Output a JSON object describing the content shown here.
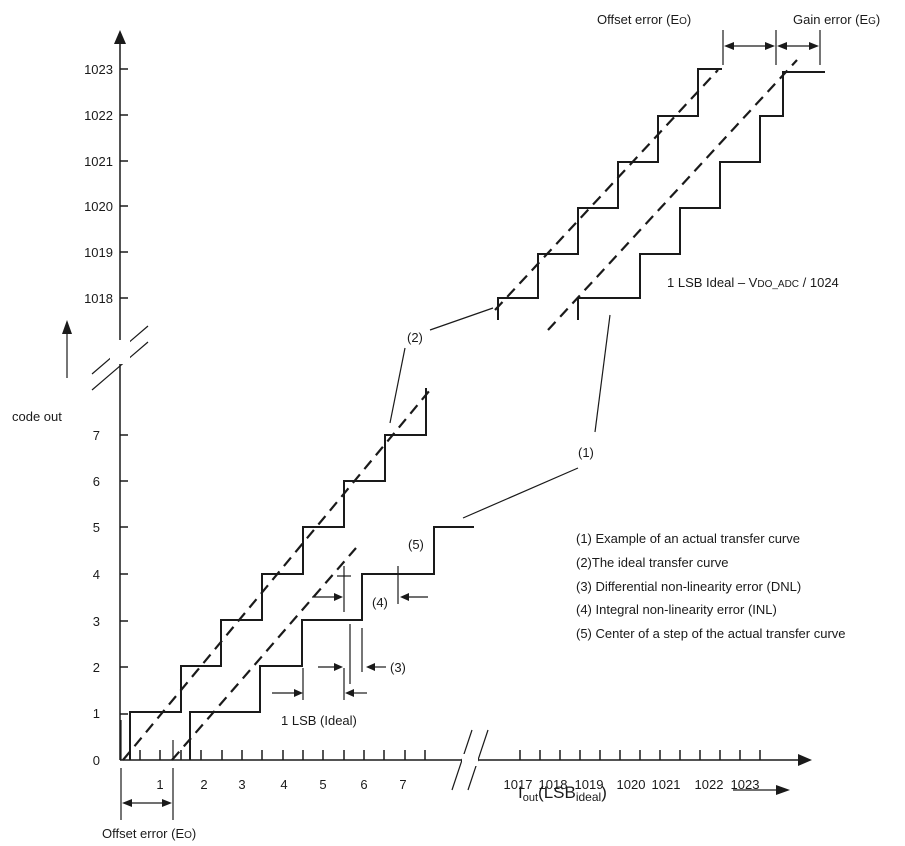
{
  "y_axis": {
    "label": "code out",
    "lower_ticks": [
      "0",
      "1",
      "2",
      "3",
      "4",
      "5",
      "6",
      "7"
    ],
    "upper_ticks": [
      "1018",
      "1019",
      "1020",
      "1021",
      "1022",
      "1023"
    ]
  },
  "x_axis": {
    "label_main": "I",
    "label_sub1": "out",
    "label_mid": "(LSB",
    "label_sub2": "ideal",
    "label_end": ")",
    "lower_ticks": [
      "1",
      "2",
      "3",
      "4",
      "5",
      "6",
      "7"
    ],
    "upper_ticks": [
      "1017",
      "1018",
      "1019",
      "1020",
      "1021",
      "1022",
      "1023"
    ]
  },
  "annotations": {
    "offset_error_top_main": "Offset error (E",
    "offset_error_top_sub": "O",
    "offset_error_top_end": ")",
    "gain_error_main": "Gain error (E",
    "gain_error_sub": "G",
    "gain_error_end": ")",
    "offset_error_bottom_main": "Offset error (E",
    "offset_error_bottom_sub": "O",
    "offset_error_bottom_end": ")",
    "lsb_ideal_main": "1 LSB Ideal – V",
    "lsb_ideal_sub": "DO_ADC",
    "lsb_ideal_end": " / 1024",
    "one_lsb": "1 LSB (Ideal)",
    "callout_1": "(1)",
    "callout_2": "(2)",
    "callout_3": "(3)",
    "callout_4": "(4)",
    "callout_5": "(5)"
  },
  "legend": [
    " (1) Example of an actual transfer curve",
    "(2)The ideal transfer curve",
    "(3) Differential non-linearity error (DNL)",
    "(4) Integral non-linearity error (INL)",
    "(5) Center of a step of the actual transfer curve"
  ]
}
